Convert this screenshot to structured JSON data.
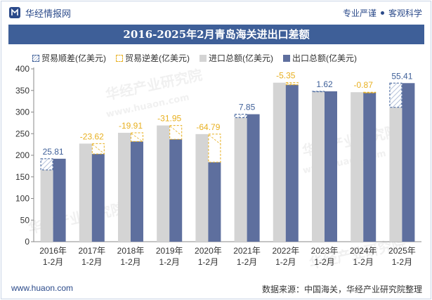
{
  "header": {
    "brand": "华经情报网",
    "tagline_left": "专业严谨",
    "tagline_right": "客观科学"
  },
  "title": "2016-2025年2月青岛海关进出口差额",
  "footer": {
    "website": "www.huaon.com",
    "source": "数据来源：中国海关，华经产业研究院整理"
  },
  "watermark": [
    "华经产业研究院",
    "www.huaon.com"
  ],
  "colors": {
    "import": "#d4d4d4",
    "export": "#5e6f9e",
    "surplus": "#3e5f98",
    "deficit": "#e8b020",
    "title_bg": "#3e5f98"
  },
  "chart_data": {
    "type": "bar",
    "categories": [
      "2016年\n1-2月",
      "2017年\n1-2月",
      "2018年\n1-2月",
      "2019年\n1-2月",
      "2020年\n1-2月",
      "2021年\n1-2月",
      "2022年\n1-2月",
      "2023年\n1-2月",
      "2024年\n1-2月",
      "2025年\n1-2月"
    ],
    "legend": [
      "贸易顺差(亿美元)",
      "贸易逆差(亿美元)",
      "进口总额(亿美元)",
      "出口总额(亿美元)"
    ],
    "series": [
      {
        "name": "进口总额(亿美元)",
        "values": [
          166,
          227,
          252,
          269,
          249,
          287,
          368,
          347,
          346,
          311
        ]
      },
      {
        "name": "出口总额(亿美元)",
        "values": [
          192,
          203,
          232,
          237,
          184,
          295,
          363,
          348,
          345,
          367
        ]
      }
    ],
    "balance": [
      25.81,
      -23.62,
      -19.91,
      -31.95,
      -64.79,
      7.85,
      -5.35,
      1.62,
      -0.87,
      55.41
    ],
    "balance_labels": [
      "25.81",
      "-23.62",
      "-19.91",
      "-31.95",
      "-64.79",
      "7.85",
      "-5.35",
      "1.62",
      "-0.87",
      "55.41"
    ],
    "yticks": [
      "0",
      "50",
      "100",
      "150",
      "200",
      "250",
      "300",
      "350",
      "400"
    ],
    "ylim": [
      0,
      400
    ]
  }
}
